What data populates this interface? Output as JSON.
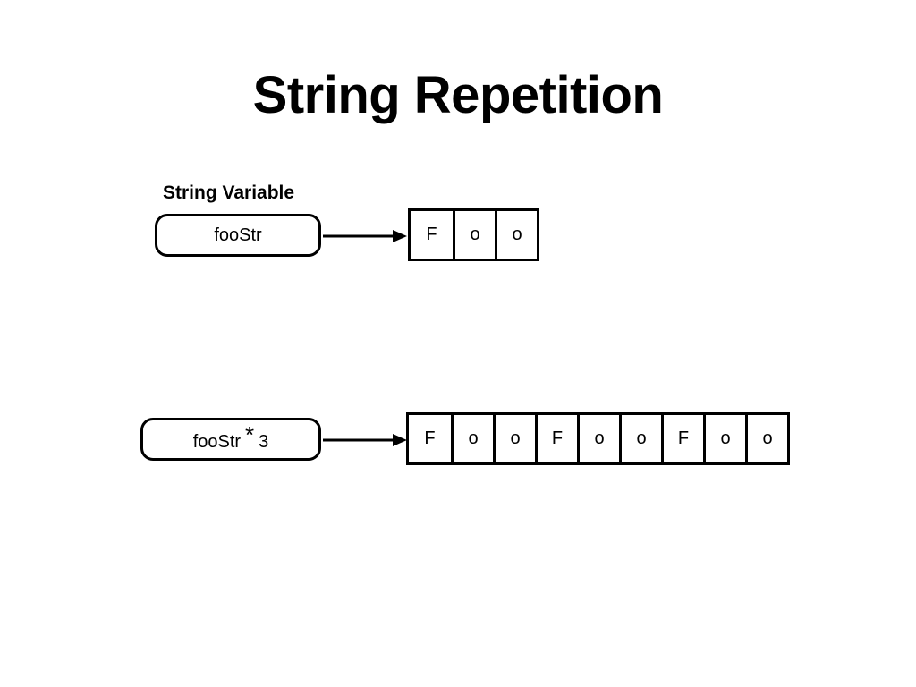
{
  "title": "String Repetition",
  "string_variable_label": "String Variable",
  "variable": {
    "name": "fooStr",
    "characters": [
      "F",
      "o",
      "o"
    ]
  },
  "repetition": {
    "operand": "fooStr",
    "operator": "*",
    "count": "3",
    "characters": [
      "F",
      "o",
      "o",
      "F",
      "o",
      "o",
      "F",
      "o",
      "o"
    ]
  }
}
